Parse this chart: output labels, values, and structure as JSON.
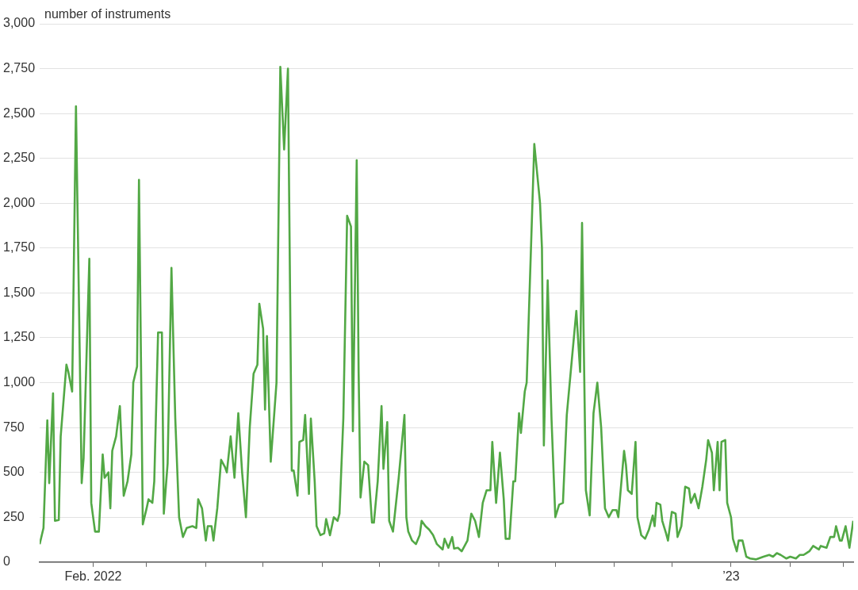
{
  "chart_data": {
    "type": "line",
    "ylabel": "number of instruments",
    "color": "#52a845",
    "line_style": "solid",
    "grid": "y",
    "xlim": [
      "2022-01-04",
      "2023-03-06"
    ],
    "xticks": [
      {
        "value": "2022-02-01",
        "label": "Feb. 2022"
      },
      {
        "value": "2022-03-01",
        "label": null
      },
      {
        "value": "2022-04-01",
        "label": null
      },
      {
        "value": "2022-05-01",
        "label": null
      },
      {
        "value": "2022-06-01",
        "label": null
      },
      {
        "value": "2022-07-01",
        "label": null
      },
      {
        "value": "2022-08-01",
        "label": null
      },
      {
        "value": "2022-09-01",
        "label": null
      },
      {
        "value": "2022-10-01",
        "label": null
      },
      {
        "value": "2022-11-01",
        "label": null
      },
      {
        "value": "2022-12-01",
        "label": null
      },
      {
        "value": "2023-01-01",
        "label": "’23"
      },
      {
        "value": "2023-02-01",
        "label": null
      },
      {
        "value": "2023-03-01",
        "label": null
      }
    ],
    "ylim": [
      0,
      3000
    ],
    "yticks": [
      0,
      250,
      500,
      750,
      {
        "value": 1000,
        "label": "1,000"
      },
      {
        "value": 1250,
        "label": "1,250"
      },
      {
        "value": 1500,
        "label": "1,500"
      },
      {
        "value": 1750,
        "label": "1,750"
      },
      {
        "value": 2000,
        "label": "2,000"
      },
      {
        "value": 2250,
        "label": "2,250"
      },
      {
        "value": 2500,
        "label": "2,500"
      },
      {
        "value": 2750,
        "label": "2,750"
      },
      {
        "value": 3000,
        "label": "3,000"
      }
    ],
    "x": [
      "2022-01-04",
      "2022-01-06",
      "2022-01-08",
      "2022-01-09",
      "2022-01-11",
      "2022-01-12",
      "2022-01-14",
      "2022-01-15",
      "2022-01-18",
      "2022-01-19",
      "2022-01-21",
      "2022-01-23",
      "2022-01-26",
      "2022-01-27",
      "2022-01-30",
      "2022-01-31",
      "2022-02-02",
      "2022-02-04",
      "2022-02-06",
      "2022-02-07",
      "2022-02-09",
      "2022-02-10",
      "2022-02-11",
      "2022-02-13",
      "2022-02-15",
      "2022-02-17",
      "2022-02-19",
      "2022-02-21",
      "2022-02-22",
      "2022-02-24",
      "2022-02-25",
      "2022-02-27",
      "2022-03-01",
      "2022-03-02",
      "2022-03-04",
      "2022-03-05",
      "2022-03-07",
      "2022-03-09",
      "2022-03-10",
      "2022-03-12",
      "2022-03-14",
      "2022-03-16",
      "2022-03-18",
      "2022-03-20",
      "2022-03-22",
      "2022-03-25",
      "2022-03-27",
      "2022-03-28",
      "2022-03-30",
      "2022-04-01",
      "2022-04-02",
      "2022-04-04",
      "2022-04-05",
      "2022-04-07",
      "2022-04-09",
      "2022-04-11",
      "2022-04-12",
      "2022-04-14",
      "2022-04-16",
      "2022-04-18",
      "2022-04-20",
      "2022-04-22",
      "2022-04-24",
      "2022-04-26",
      "2022-04-28",
      "2022-04-29",
      "2022-05-01",
      "2022-05-02",
      "2022-05-03",
      "2022-05-05",
      "2022-05-08",
      "2022-05-10",
      "2022-05-12",
      "2022-05-14",
      "2022-05-16",
      "2022-05-17",
      "2022-05-19",
      "2022-05-20",
      "2022-05-22",
      "2022-05-23",
      "2022-05-25",
      "2022-05-26",
      "2022-05-28",
      "2022-05-29",
      "2022-05-31",
      "2022-06-02",
      "2022-06-03",
      "2022-06-05",
      "2022-06-07",
      "2022-06-09",
      "2022-06-10",
      "2022-06-12",
      "2022-06-14",
      "2022-06-16",
      "2022-06-17",
      "2022-06-19",
      "2022-06-20",
      "2022-06-21",
      "2022-06-23",
      "2022-06-25",
      "2022-06-27",
      "2022-06-28",
      "2022-06-30",
      "2022-07-02",
      "2022-07-03",
      "2022-07-05",
      "2022-07-06",
      "2022-07-08",
      "2022-07-10",
      "2022-07-11",
      "2022-07-14",
      "2022-07-15",
      "2022-07-16",
      "2022-07-18",
      "2022-07-20",
      "2022-07-22",
      "2022-07-23",
      "2022-07-25",
      "2022-07-27",
      "2022-07-29",
      "2022-07-31",
      "2022-08-03",
      "2022-08-04",
      "2022-08-06",
      "2022-08-08",
      "2022-08-09",
      "2022-08-11",
      "2022-08-13",
      "2022-08-15",
      "2022-08-16",
      "2022-08-18",
      "2022-08-20",
      "2022-08-22",
      "2022-08-24",
      "2022-08-26",
      "2022-08-28",
      "2022-08-29",
      "2022-08-31",
      "2022-09-02",
      "2022-09-04",
      "2022-09-05",
      "2022-09-07",
      "2022-09-09",
      "2022-09-10",
      "2022-09-12",
      "2022-09-13",
      "2022-09-15",
      "2022-09-16",
      "2022-09-20",
      "2022-09-23",
      "2022-09-24",
      "2022-09-25",
      "2022-09-27",
      "2022-09-29",
      "2022-10-01",
      "2022-10-03",
      "2022-10-05",
      "2022-10-07",
      "2022-10-12",
      "2022-10-14",
      "2022-10-15",
      "2022-10-17",
      "2022-10-19",
      "2022-10-21",
      "2022-10-23",
      "2022-10-25",
      "2022-10-27",
      "2022-10-29",
      "2022-10-31",
      "2022-11-02",
      "2022-11-03",
      "2022-11-06",
      "2022-11-07",
      "2022-11-08",
      "2022-11-10",
      "2022-11-12",
      "2022-11-13",
      "2022-11-15",
      "2022-11-17",
      "2022-11-19",
      "2022-11-21",
      "2022-11-22",
      "2022-11-23",
      "2022-11-25",
      "2022-11-26",
      "2022-11-28",
      "2022-11-29",
      "2022-12-01",
      "2022-12-03",
      "2022-12-04",
      "2022-12-06",
      "2022-12-08",
      "2022-12-10",
      "2022-12-11",
      "2022-12-13",
      "2022-12-15",
      "2022-12-17",
      "2022-12-19",
      "2022-12-20",
      "2022-12-22",
      "2022-12-23",
      "2022-12-25",
      "2022-12-26",
      "2022-12-27",
      "2022-12-29",
      "2022-12-30",
      "2023-01-01",
      "2023-01-02",
      "2023-01-04",
      "2023-01-05",
      "2023-01-07",
      "2023-01-09",
      "2023-01-11",
      "2023-01-14",
      "2023-01-18",
      "2023-01-21",
      "2023-01-23",
      "2023-01-25",
      "2023-01-27",
      "2023-01-30",
      "2023-02-01",
      "2023-02-04",
      "2023-02-06",
      "2023-02-08",
      "2023-02-11",
      "2023-02-13",
      "2023-02-16",
      "2023-02-17",
      "2023-02-20",
      "2023-02-22",
      "2023-02-24",
      "2023-02-25",
      "2023-02-27",
      "2023-02-28",
      "2023-03-02",
      "2023-03-04",
      "2023-03-06"
    ],
    "values": [
      100,
      190,
      790,
      440,
      940,
      230,
      235,
      700,
      1100,
      1060,
      950,
      2540,
      440,
      580,
      1690,
      330,
      170,
      170,
      600,
      470,
      500,
      300,
      620,
      700,
      870,
      370,
      450,
      600,
      1000,
      1090,
      2130,
      210,
      300,
      350,
      330,
      450,
      1280,
      1280,
      270,
      550,
      1640,
      800,
      250,
      140,
      190,
      200,
      190,
      350,
      300,
      120,
      200,
      200,
      120,
      300,
      570,
      530,
      500,
      700,
      470,
      830,
      500,
      250,
      750,
      1050,
      1100,
      1440,
      1300,
      850,
      1260,
      560,
      1000,
      2760,
      2300,
      2750,
      510,
      510,
      370,
      670,
      680,
      820,
      380,
      800,
      450,
      200,
      150,
      160,
      240,
      150,
      250,
      230,
      270,
      800,
      1930,
      1870,
      730,
      2240,
      1060,
      360,
      560,
      540,
      220,
      220,
      450,
      870,
      520,
      780,
      230,
      170,
      370,
      470,
      820,
      250,
      170,
      120,
      100,
      150,
      230,
      200,
      180,
      150,
      100,
      70,
      130,
      80,
      140,
      75,
      80,
      60,
      100,
      120,
      270,
      230,
      140,
      330,
      400,
      400,
      670,
      330,
      610,
      350,
      130,
      130,
      450,
      450,
      830,
      720,
      950,
      1000,
      2330,
      2000,
      1750,
      650,
      1570,
      800,
      250,
      320,
      330,
      820,
      1400,
      1060,
      1890,
      400,
      260,
      830,
      1000,
      750,
      300,
      250,
      290,
      290,
      250,
      620,
      540,
      400,
      380,
      670,
      250,
      150,
      130,
      180,
      260,
      200,
      330,
      320,
      230,
      160,
      120,
      280,
      270,
      140,
      200,
      420,
      410,
      330,
      380,
      300,
      420,
      570,
      680,
      610,
      400,
      670,
      400,
      670,
      680,
      330,
      250,
      130,
      60,
      120,
      120,
      30,
      20,
      15,
      30,
      40,
      30,
      50,
      40,
      20,
      30,
      20,
      40,
      40,
      60,
      90,
      70,
      90,
      80,
      140,
      140,
      200,
      120,
      120,
      200,
      80,
      230
    ]
  }
}
